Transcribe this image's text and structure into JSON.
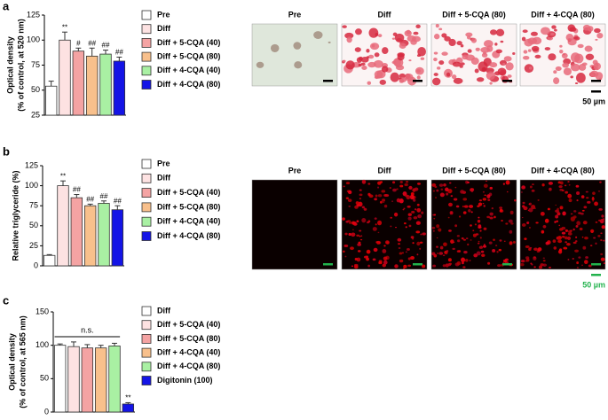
{
  "chart_data": [
    {
      "type": "bar",
      "panel": "a",
      "ylabel": [
        "Optical density",
        "(% of control, at 520 nm)"
      ],
      "categories": [
        "Pre",
        "Diff",
        "Diff + 5-CQA (40)",
        "Diff + 5-CQA (80)",
        "Diff + 4-CQA (40)",
        "Diff + 4-CQA (80)"
      ],
      "values": [
        54,
        100,
        89,
        84,
        86,
        79
      ],
      "errors": [
        5,
        8,
        3,
        8,
        4,
        4
      ],
      "colors": [
        "#ffffff",
        "#fde2e2",
        "#f4a3a3",
        "#f8c08c",
        "#a9f0a3",
        "#1414e6"
      ],
      "annotations": [
        null,
        "**",
        "#",
        "##",
        "##",
        "##"
      ],
      "ylim": [
        25,
        125
      ],
      "yticks": [
        25,
        50,
        75,
        100,
        125
      ],
      "images": {
        "labels": [
          "Pre",
          "Diff",
          "Diff + 5-CQA (80)",
          "Diff + 4-CQA (80)"
        ],
        "scale": "50 µm"
      }
    },
    {
      "type": "bar",
      "panel": "b",
      "ylabel": [
        "Relative triglyceride (%)"
      ],
      "categories": [
        "Pre",
        "Diff",
        "Diff + 5-CQA (40)",
        "Diff + 5-CQA (80)",
        "Diff + 4-CQA (40)",
        "Diff + 4-CQA (80)"
      ],
      "values": [
        13,
        100,
        85,
        75,
        78,
        70
      ],
      "errors": [
        1,
        6,
        4,
        2,
        3,
        5
      ],
      "colors": [
        "#ffffff",
        "#fde2e2",
        "#f4a3a3",
        "#f8c08c",
        "#a9f0a3",
        "#1414e6"
      ],
      "annotations": [
        null,
        "**",
        "##",
        "##",
        "##",
        "##"
      ],
      "ylim": [
        0,
        125
      ],
      "yticks": [
        0,
        25,
        50,
        75,
        100,
        125
      ],
      "images": {
        "labels": [
          "Pre",
          "Diff",
          "Diff + 5-CQA (80)",
          "Diff + 4-CQA (80)"
        ],
        "scale": "50 µm"
      }
    },
    {
      "type": "bar",
      "panel": "c",
      "ylabel": [
        "Optical density",
        "(% of control, at 565 nm)"
      ],
      "categories": [
        "Diff",
        "Diff + 5-CQA (40)",
        "Diff + 5-CQA (80)",
        "Diff + 4-CQA (40)",
        "Diff + 4-CQA (80)",
        "Digitonin (100)"
      ],
      "values": [
        100,
        98,
        96,
        96,
        99,
        12
      ],
      "errors": [
        2,
        7,
        5,
        4,
        4,
        2
      ],
      "colors": [
        "#ffffff",
        "#fde2e2",
        "#f4a3a3",
        "#f8c08c",
        "#a9f0a3",
        "#1414e6"
      ],
      "annotations": [
        null,
        null,
        null,
        null,
        null,
        "**"
      ],
      "bracket": "n.s.",
      "ylim": [
        0,
        150
      ],
      "yticks": [
        0,
        50,
        100,
        150
      ]
    }
  ]
}
